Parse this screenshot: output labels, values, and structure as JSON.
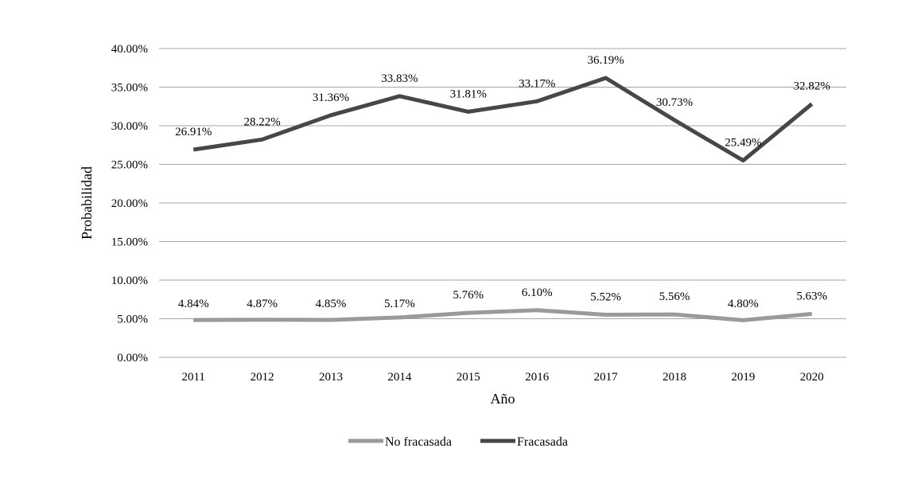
{
  "chart_data": {
    "type": "line",
    "title": "",
    "xlabel": "Año",
    "ylabel": "Probabilidad",
    "categories": [
      "2011",
      "2012",
      "2013",
      "2014",
      "2015",
      "2016",
      "2017",
      "2018",
      "2019",
      "2020"
    ],
    "ylim": [
      0,
      40
    ],
    "yticks": [
      0,
      5,
      10,
      15,
      20,
      25,
      30,
      35,
      40
    ],
    "ytick_labels": [
      "0.00%",
      "5.00%",
      "10.00%",
      "15.00%",
      "20.00%",
      "25.00%",
      "30.00%",
      "35.00%",
      "40.00%"
    ],
    "grid": true,
    "legend_position": "bottom",
    "series": [
      {
        "name": "No fracasada",
        "color": "#9a9a9a",
        "values": [
          4.84,
          4.87,
          4.85,
          5.17,
          5.76,
          6.1,
          5.52,
          5.56,
          4.8,
          5.63
        ],
        "labels": [
          "4.84%",
          "4.87%",
          "4.85%",
          "5.17%",
          "5.76%",
          "6.10%",
          "5.52%",
          "5.56%",
          "4.80%",
          "5.63%"
        ]
      },
      {
        "name": "Fracasada",
        "color": "#474747",
        "values": [
          26.91,
          28.22,
          31.36,
          33.83,
          31.81,
          33.17,
          36.19,
          30.73,
          25.49,
          32.82
        ],
        "labels": [
          "26.91%",
          "28.22%",
          "31.36%",
          "33.83%",
          "31.81%",
          "33.17%",
          "36.19%",
          "30.73%",
          "25.49%",
          "32.82%"
        ]
      }
    ]
  }
}
